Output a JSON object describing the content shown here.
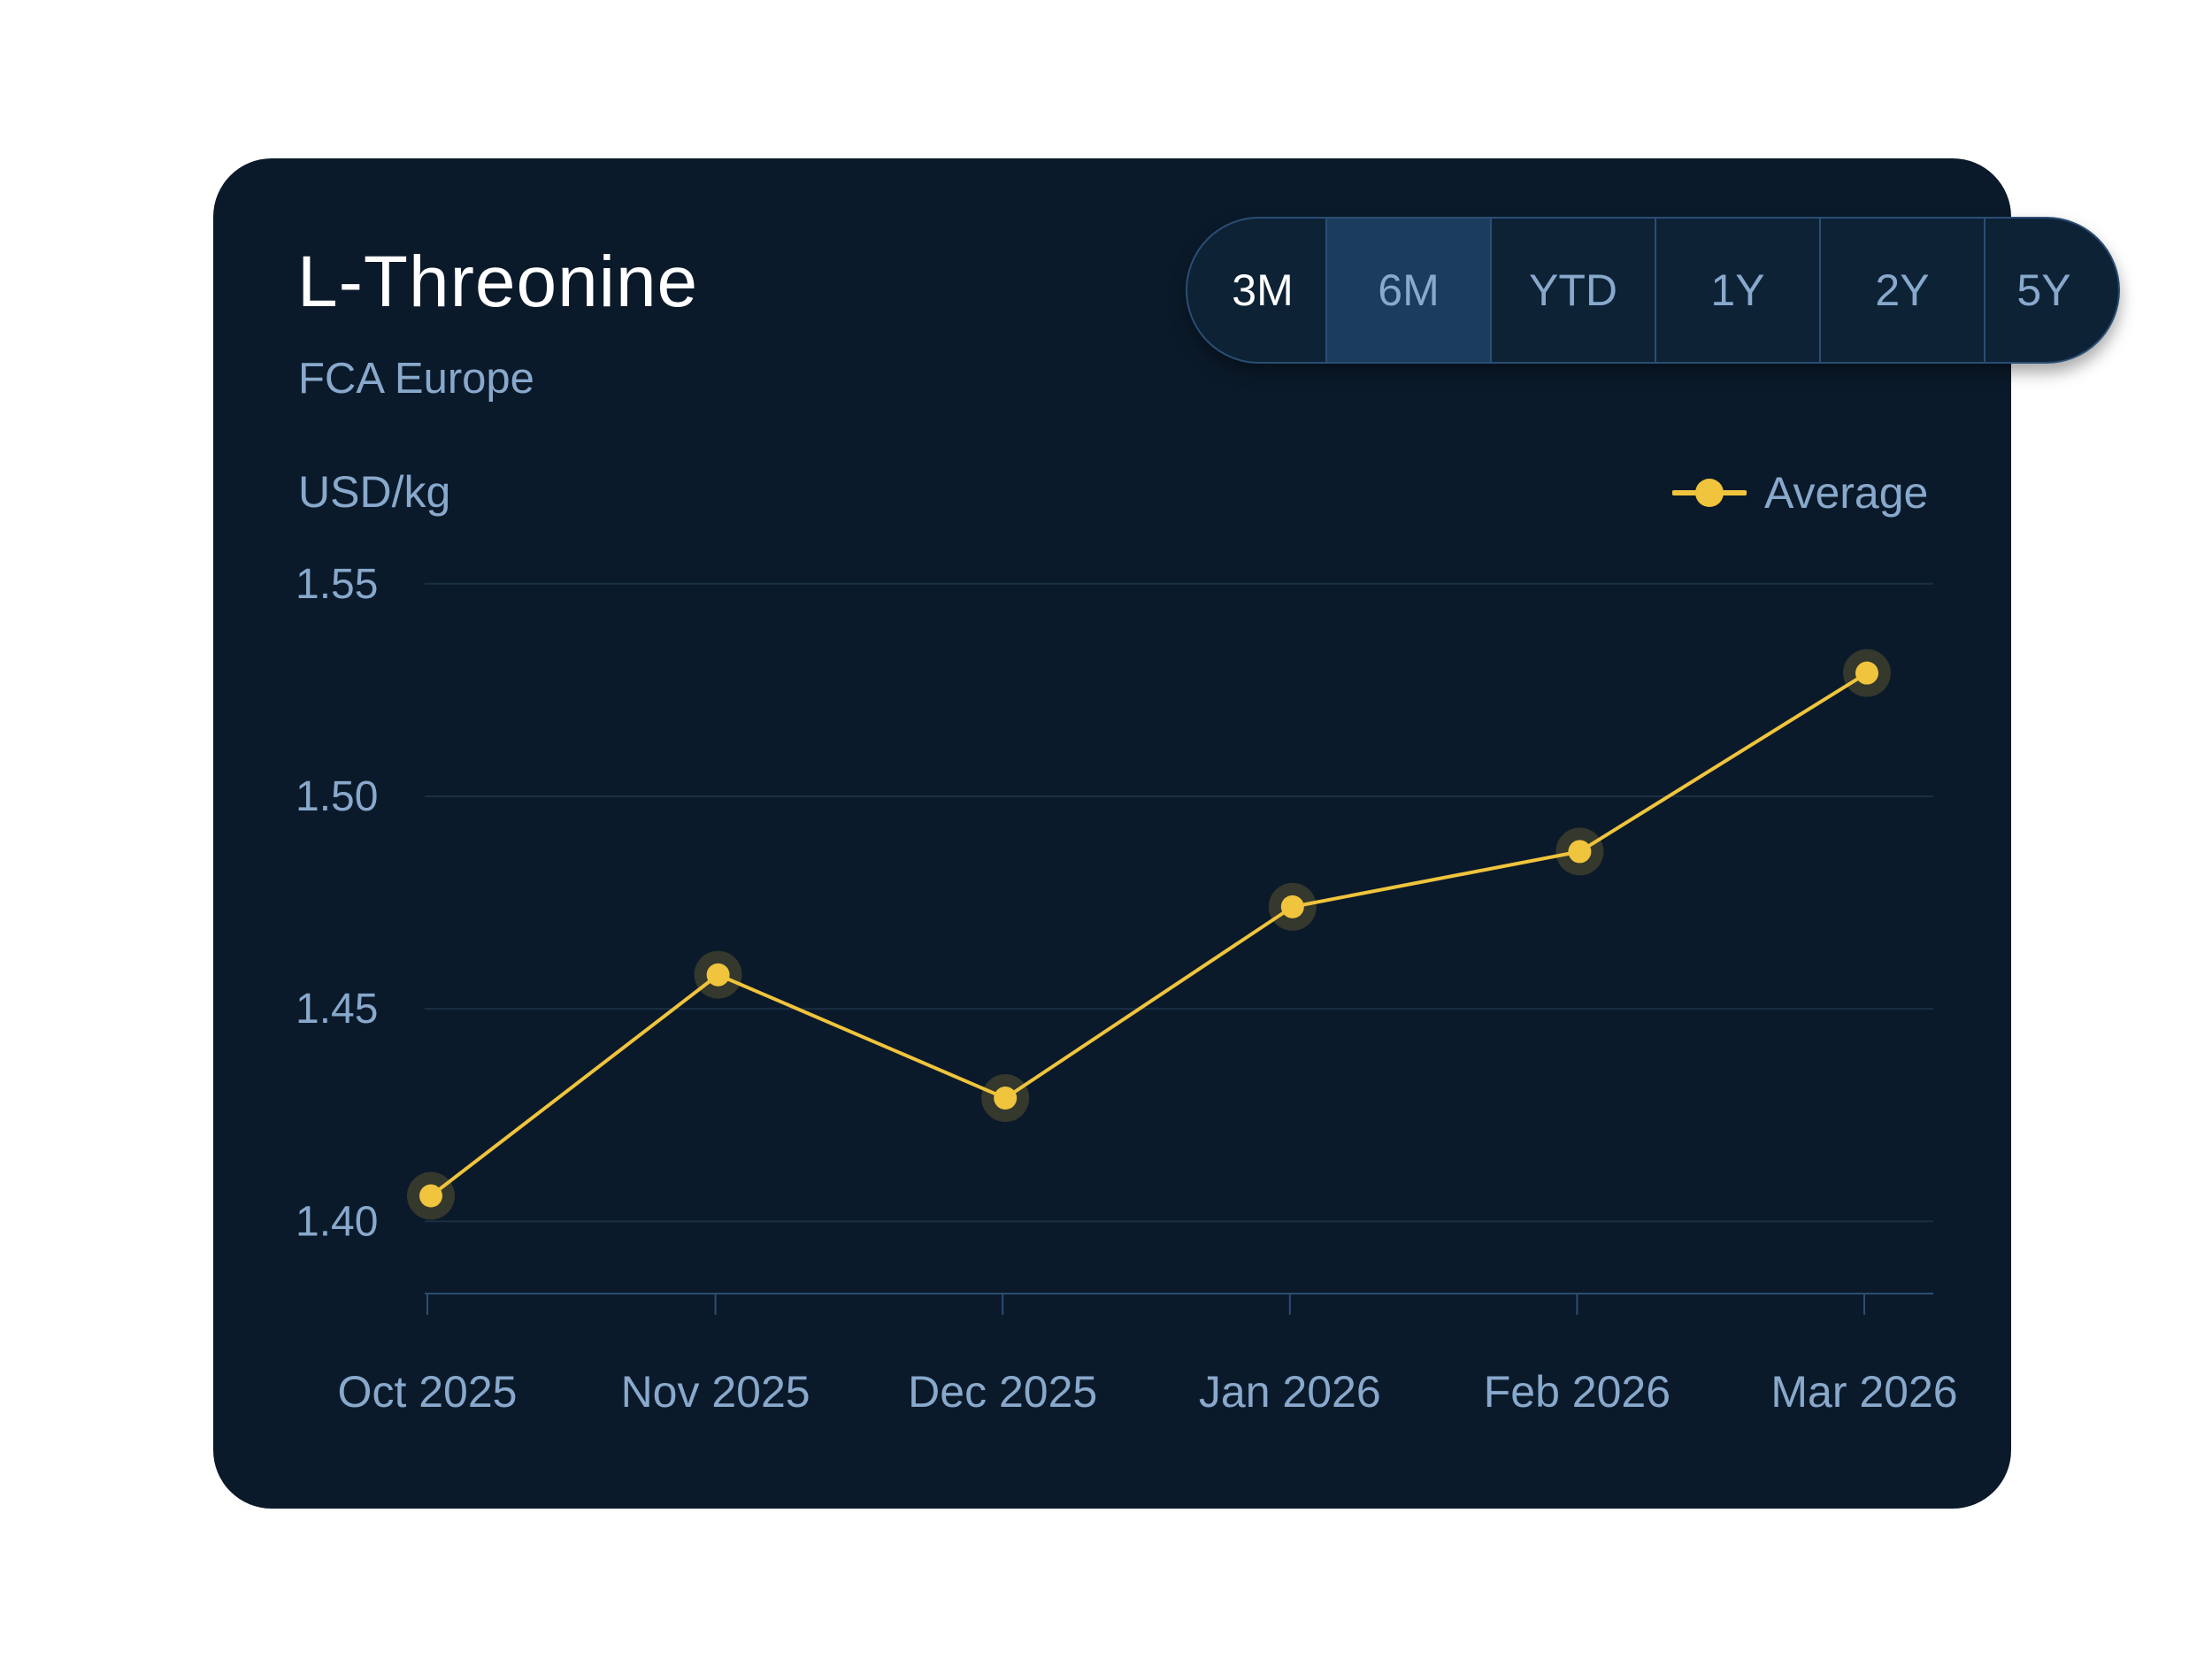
{
  "card": {
    "title": "L-Threonine",
    "subtitle": "FCA Europe",
    "unit_label": "USD/kg"
  },
  "range_selector": {
    "options": [
      "3M",
      "6M",
      "YTD",
      "1Y",
      "2Y",
      "5Y"
    ],
    "selected": "3M"
  },
  "chart_data": {
    "type": "line",
    "ylabel": "USD/kg",
    "categories": [
      "Oct 2025",
      "Nov 2025",
      "Dec 2025",
      "Jan 2026",
      "Feb 2026",
      "Mar 2026"
    ],
    "series": [
      {
        "name": "Average",
        "values": [
          1.406,
          1.458,
          1.429,
          1.474,
          1.487,
          1.529
        ],
        "color": "#f0c43c"
      }
    ],
    "y_ticks": [
      "1.55",
      "1.50",
      "1.45",
      "1.40"
    ],
    "ylim": [
      1.383,
      1.551
    ],
    "grid": true,
    "legend": "top-right"
  }
}
